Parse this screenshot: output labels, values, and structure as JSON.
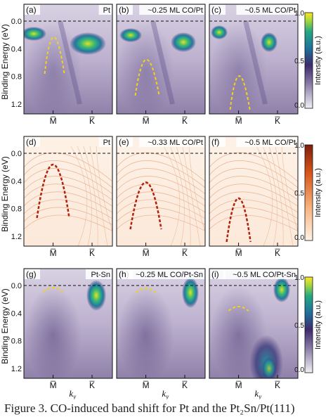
{
  "figure": {
    "y_axis_label": "Binding Energy (eV)",
    "y_ticks": [
      "0.0",
      "0.4",
      "0.8",
      "1.2"
    ],
    "x_ticks": [
      "M̅",
      "K̅"
    ],
    "x_axis_label": "k_y",
    "colorbar_label": "Intensity (a.u.)",
    "colorbar_ticks": [
      "1.0",
      "0.5",
      "0.0"
    ],
    "rows": [
      {
        "colormap": "viridis",
        "panels": [
          {
            "tag": "(a)",
            "title": "Pt"
          },
          {
            "tag": "(b)",
            "title": "~0.25 ML CO/Pt"
          },
          {
            "tag": "(c)",
            "title": "~0.5 ML CO/Pt"
          }
        ]
      },
      {
        "colormap": "oranges",
        "panels": [
          {
            "tag": "(d)",
            "title": "Pt"
          },
          {
            "tag": "(e)",
            "title": "~0.33 ML CO/Pt"
          },
          {
            "tag": "(f)",
            "title": "~0.5 ML CO/Pt"
          }
        ]
      },
      {
        "colormap": "viridis",
        "panels": [
          {
            "tag": "(g)",
            "title": "Pt-Sn"
          },
          {
            "tag": "(h)",
            "title": "~0.25 ML CO/Pt-Sn"
          },
          {
            "tag": "(i)",
            "title": "~0.5 ML CO/Pt-Sn"
          }
        ]
      }
    ]
  },
  "caption": "Figure 3. CO-induced band shift for Pt and the Pt₂Sn/Pt(111)"
}
